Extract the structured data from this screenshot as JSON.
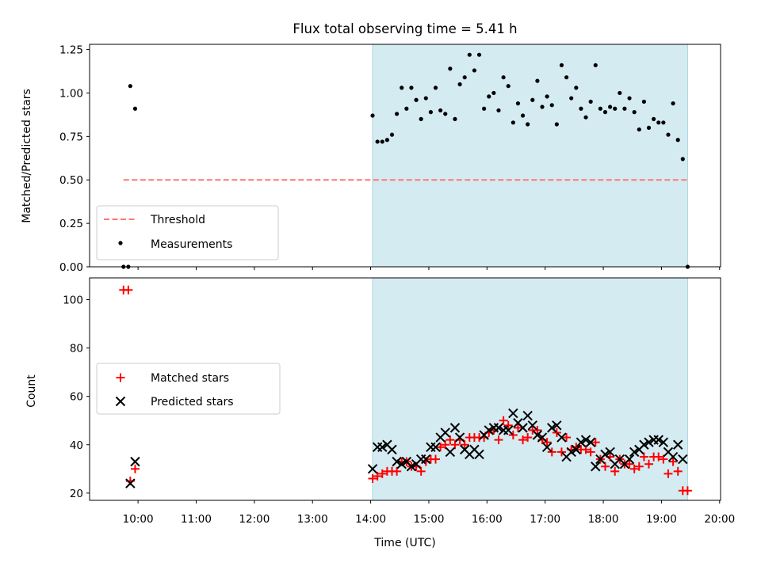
{
  "chart_data": [
    {
      "type": "scatter",
      "title": "Flux total observing time = 5.41 h",
      "ylabel": "Matched/Predicted stars",
      "ylim": [
        0,
        1.28
      ],
      "yticks": [
        "0.00",
        "0.25",
        "0.50",
        "0.75",
        "1.00",
        "1.25"
      ],
      "ytick_values": [
        0,
        0.25,
        0.5,
        0.75,
        1.0,
        1.25
      ],
      "shaded_region_x": [
        "14:02",
        "19:27"
      ],
      "shaded_color": "#d4ebf1",
      "threshold": {
        "name": "Threshold",
        "y": 0.5,
        "x_range": [
          "09:45",
          "19:27"
        ],
        "color": "#ff7777"
      },
      "series": [
        {
          "name": "Measurements",
          "marker": "dot",
          "color": "#000000",
          "points": [
            [
              "09:45",
              0.0
            ],
            [
              "09:50",
              0.0
            ],
            [
              "09:52",
              1.04
            ],
            [
              "09:57",
              0.91
            ],
            [
              "14:02",
              0.87
            ],
            [
              "14:07",
              0.72
            ],
            [
              "14:12",
              0.72
            ],
            [
              "14:17",
              0.73
            ],
            [
              "14:22",
              0.76
            ],
            [
              "14:27",
              0.88
            ],
            [
              "14:32",
              1.03
            ],
            [
              "14:37",
              0.91
            ],
            [
              "14:42",
              1.03
            ],
            [
              "14:47",
              0.96
            ],
            [
              "14:52",
              0.85
            ],
            [
              "14:57",
              0.97
            ],
            [
              "15:02",
              0.89
            ],
            [
              "15:07",
              1.03
            ],
            [
              "15:12",
              0.9
            ],
            [
              "15:17",
              0.88
            ],
            [
              "15:22",
              1.14
            ],
            [
              "15:27",
              0.85
            ],
            [
              "15:32",
              1.05
            ],
            [
              "15:37",
              1.09
            ],
            [
              "15:42",
              1.22
            ],
            [
              "15:47",
              1.13
            ],
            [
              "15:52",
              1.22
            ],
            [
              "15:57",
              0.91
            ],
            [
              "16:02",
              0.98
            ],
            [
              "16:07",
              1.0
            ],
            [
              "16:12",
              0.9
            ],
            [
              "16:17",
              1.09
            ],
            [
              "16:22",
              1.04
            ],
            [
              "16:27",
              0.83
            ],
            [
              "16:32",
              0.94
            ],
            [
              "16:37",
              0.87
            ],
            [
              "16:42",
              0.82
            ],
            [
              "16:47",
              0.96
            ],
            [
              "16:52",
              1.07
            ],
            [
              "16:57",
              0.92
            ],
            [
              "17:02",
              0.98
            ],
            [
              "17:07",
              0.93
            ],
            [
              "17:12",
              0.82
            ],
            [
              "17:17",
              1.16
            ],
            [
              "17:22",
              1.09
            ],
            [
              "17:27",
              0.97
            ],
            [
              "17:32",
              1.03
            ],
            [
              "17:37",
              0.91
            ],
            [
              "17:42",
              0.86
            ],
            [
              "17:47",
              0.95
            ],
            [
              "17:52",
              1.16
            ],
            [
              "17:57",
              0.91
            ],
            [
              "18:02",
              0.89
            ],
            [
              "18:07",
              0.92
            ],
            [
              "18:12",
              0.91
            ],
            [
              "18:17",
              1.0
            ],
            [
              "18:22",
              0.91
            ],
            [
              "18:27",
              0.97
            ],
            [
              "18:32",
              0.89
            ],
            [
              "18:37",
              0.79
            ],
            [
              "18:42",
              0.95
            ],
            [
              "18:47",
              0.8
            ],
            [
              "18:52",
              0.85
            ],
            [
              "18:57",
              0.83
            ],
            [
              "19:02",
              0.83
            ],
            [
              "19:07",
              0.76
            ],
            [
              "19:12",
              0.94
            ],
            [
              "19:17",
              0.73
            ],
            [
              "19:22",
              0.62
            ],
            [
              "19:27",
              0.0
            ]
          ]
        }
      ],
      "legend": {
        "position": "lower left",
        "entries": [
          "Threshold",
          "Measurements"
        ]
      }
    },
    {
      "type": "scatter",
      "xlabel": "Time (UTC)",
      "ylabel": "Count",
      "ylim": [
        17,
        109
      ],
      "yticks": [
        "20",
        "40",
        "60",
        "80",
        "100"
      ],
      "ytick_values": [
        20,
        40,
        60,
        80,
        100
      ],
      "xlim": [
        "09:10",
        "20:01"
      ],
      "xticks": [
        "10:00",
        "11:00",
        "12:00",
        "13:00",
        "14:00",
        "15:00",
        "16:00",
        "17:00",
        "18:00",
        "19:00",
        "20:00"
      ],
      "shaded_region_x": [
        "14:02",
        "19:27"
      ],
      "series": [
        {
          "name": "Matched stars",
          "marker": "plus",
          "color": "#ff0000",
          "points": [
            [
              "09:45",
              104
            ],
            [
              "09:50",
              104
            ],
            [
              "09:52",
              25
            ],
            [
              "09:57",
              30
            ],
            [
              "14:02",
              26
            ],
            [
              "14:07",
              27
            ],
            [
              "14:12",
              28
            ],
            [
              "14:17",
              29
            ],
            [
              "14:22",
              29
            ],
            [
              "14:27",
              29
            ],
            [
              "14:32",
              33
            ],
            [
              "14:37",
              33
            ],
            [
              "14:42",
              31
            ],
            [
              "14:47",
              31
            ],
            [
              "14:52",
              29
            ],
            [
              "14:57",
              33
            ],
            [
              "15:02",
              34
            ],
            [
              "15:07",
              34
            ],
            [
              "15:12",
              39
            ],
            [
              "15:17",
              40
            ],
            [
              "15:22",
              42
            ],
            [
              "15:27",
              40
            ],
            [
              "15:32",
              42
            ],
            [
              "15:37",
              40
            ],
            [
              "15:42",
              43
            ],
            [
              "15:47",
              43
            ],
            [
              "15:52",
              43
            ],
            [
              "15:57",
              43
            ],
            [
              "16:02",
              45
            ],
            [
              "16:07",
              46
            ],
            [
              "16:12",
              42
            ],
            [
              "16:17",
              50
            ],
            [
              "16:22",
              48
            ],
            [
              "16:27",
              44
            ],
            [
              "16:32",
              47
            ],
            [
              "16:37",
              42
            ],
            [
              "16:42",
              43
            ],
            [
              "16:47",
              46
            ],
            [
              "16:52",
              46
            ],
            [
              "16:57",
              42
            ],
            [
              "17:02",
              41
            ],
            [
              "17:07",
              37
            ],
            [
              "17:12",
              45
            ],
            [
              "17:17",
              37
            ],
            [
              "17:22",
              43
            ],
            [
              "17:27",
              38
            ],
            [
              "17:32",
              39
            ],
            [
              "17:37",
              38
            ],
            [
              "17:42",
              38
            ],
            [
              "17:47",
              37
            ],
            [
              "17:52",
              41
            ],
            [
              "17:57",
              34
            ],
            [
              "18:02",
              31
            ],
            [
              "18:07",
              35
            ],
            [
              "18:12",
              29
            ],
            [
              "18:17",
              34
            ],
            [
              "18:22",
              32
            ],
            [
              "18:27",
              32
            ],
            [
              "18:32",
              30
            ],
            [
              "18:37",
              31
            ],
            [
              "18:42",
              35
            ],
            [
              "18:47",
              32
            ],
            [
              "18:52",
              35
            ],
            [
              "18:57",
              35
            ],
            [
              "19:02",
              34
            ],
            [
              "19:07",
              28
            ],
            [
              "19:12",
              33
            ],
            [
              "19:17",
              29
            ],
            [
              "19:22",
              21
            ],
            [
              "19:27",
              21
            ]
          ]
        },
        {
          "name": "Predicted stars",
          "marker": "x",
          "color": "#000000",
          "points": [
            [
              "09:52",
              24
            ],
            [
              "09:57",
              33
            ],
            [
              "14:02",
              30
            ],
            [
              "14:07",
              39
            ],
            [
              "14:12",
              39
            ],
            [
              "14:17",
              40
            ],
            [
              "14:22",
              38
            ],
            [
              "14:27",
              33
            ],
            [
              "14:32",
              32
            ],
            [
              "14:37",
              33
            ],
            [
              "14:42",
              31
            ],
            [
              "14:47",
              32
            ],
            [
              "14:52",
              34
            ],
            [
              "14:57",
              34
            ],
            [
              "15:02",
              39
            ],
            [
              "15:07",
              39
            ],
            [
              "15:12",
              43
            ],
            [
              "15:17",
              45
            ],
            [
              "15:22",
              37
            ],
            [
              "15:27",
              47
            ],
            [
              "15:32",
              43
            ],
            [
              "15:37",
              38
            ],
            [
              "15:42",
              36
            ],
            [
              "15:47",
              38
            ],
            [
              "15:52",
              36
            ],
            [
              "15:57",
              44
            ],
            [
              "16:02",
              46
            ],
            [
              "16:07",
              47
            ],
            [
              "16:12",
              47
            ],
            [
              "16:17",
              46
            ],
            [
              "16:22",
              46
            ],
            [
              "16:27",
              53
            ],
            [
              "16:32",
              49
            ],
            [
              "16:37",
              47
            ],
            [
              "16:42",
              52
            ],
            [
              "16:47",
              48
            ],
            [
              "16:52",
              44
            ],
            [
              "16:57",
              43
            ],
            [
              "17:02",
              39
            ],
            [
              "17:07",
              47
            ],
            [
              "17:12",
              48
            ],
            [
              "17:17",
              43
            ],
            [
              "17:22",
              35
            ],
            [
              "17:27",
              37
            ],
            [
              "17:32",
              38
            ],
            [
              "17:37",
              41
            ],
            [
              "17:42",
              42
            ],
            [
              "17:47",
              41
            ],
            [
              "17:52",
              31
            ],
            [
              "17:57",
              34
            ],
            [
              "18:02",
              36
            ],
            [
              "18:07",
              37
            ],
            [
              "18:12",
              32
            ],
            [
              "18:17",
              34
            ],
            [
              "18:22",
              32
            ],
            [
              "18:27",
              34
            ],
            [
              "18:32",
              37
            ],
            [
              "18:37",
              38
            ],
            [
              "18:42",
              40
            ],
            [
              "18:47",
              41
            ],
            [
              "18:52",
              42
            ],
            [
              "18:57",
              42
            ],
            [
              "19:02",
              41
            ],
            [
              "19:07",
              37
            ],
            [
              "19:12",
              35
            ],
            [
              "19:17",
              40
            ],
            [
              "19:22",
              34
            ]
          ]
        }
      ],
      "legend": {
        "position": "center left",
        "entries": [
          "Matched stars",
          "Predicted stars"
        ]
      }
    }
  ]
}
